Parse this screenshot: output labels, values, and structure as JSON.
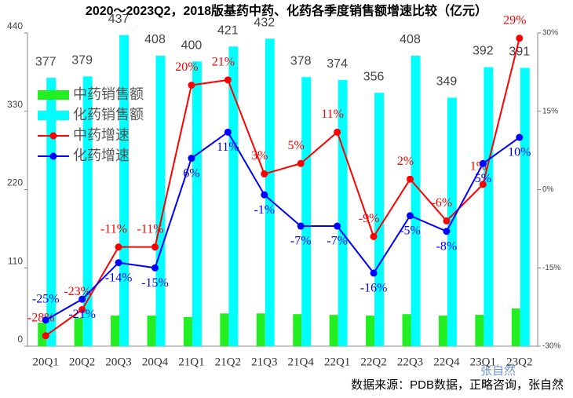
{
  "chart_data": {
    "type": "bar-line",
    "title": "2020～2023Q2，2018版基药中药、化药各季度销售额增速比较（亿元）",
    "source": "数据来源：PDB数据，正略咨询，张自然",
    "watermark": "张自然",
    "categories": [
      "20Q1",
      "20Q2",
      "20Q3",
      "20Q4",
      "21Q1",
      "21Q2",
      "21Q3",
      "21Q4",
      "22Q1",
      "22Q2",
      "22Q3",
      "22Q4",
      "23Q1",
      "23Q2"
    ],
    "ylim": [
      0,
      440
    ],
    "yticks": [
      0,
      110,
      220,
      330,
      440
    ],
    "y2lim": [
      -30,
      30
    ],
    "y2ticks": [
      {
        "value": -30,
        "label": "-30%"
      },
      {
        "value": -15,
        "label": "-15%"
      },
      {
        "value": 0,
        "label": "0%"
      },
      {
        "value": 15,
        "label": "15%"
      },
      {
        "value": 30,
        "label": "30%"
      }
    ],
    "legend": "upper-left",
    "grid": false,
    "series": [
      {
        "name": "中药销售额",
        "kind": "bar",
        "color": "#22ee22",
        "values": [
          33,
          40,
          43,
          43,
          41,
          46,
          46,
          45,
          44,
          43,
          45,
          43,
          44,
          53
        ]
      },
      {
        "name": "化药销售额",
        "kind": "bar",
        "color": "#00ffff",
        "values": [
          377,
          379,
          437,
          408,
          400,
          421,
          432,
          378,
          374,
          356,
          408,
          349,
          392,
          391
        ]
      },
      {
        "name": "中药增速",
        "kind": "line",
        "axis": "y2",
        "color": "#ff0000",
        "values": [
          -28,
          -23,
          -11,
          -11,
          20,
          21,
          3,
          5,
          11,
          -9,
          2,
          -6,
          1,
          29
        ],
        "value_labels": [
          "-28%",
          "-23%",
          "-11%",
          "-11%",
          "20%",
          "21%",
          "3%",
          "5%",
          "11%",
          "-9%",
          "2%",
          "-6%",
          "1%",
          "29%"
        ]
      },
      {
        "name": "化药增速",
        "kind": "line",
        "axis": "y2",
        "color": "#0000ff",
        "values": [
          -25,
          -21,
          -14,
          -15,
          6,
          11,
          -1,
          -7,
          -7,
          -16,
          -5,
          -8,
          5,
          10
        ],
        "value_labels": [
          "-25%",
          "-21%",
          "-14%",
          "-15%",
          "6%",
          "11%",
          "-1%",
          "-7%",
          "-7%",
          "-16%",
          "-5%",
          "-8%",
          "5%",
          "10%"
        ]
      }
    ]
  }
}
